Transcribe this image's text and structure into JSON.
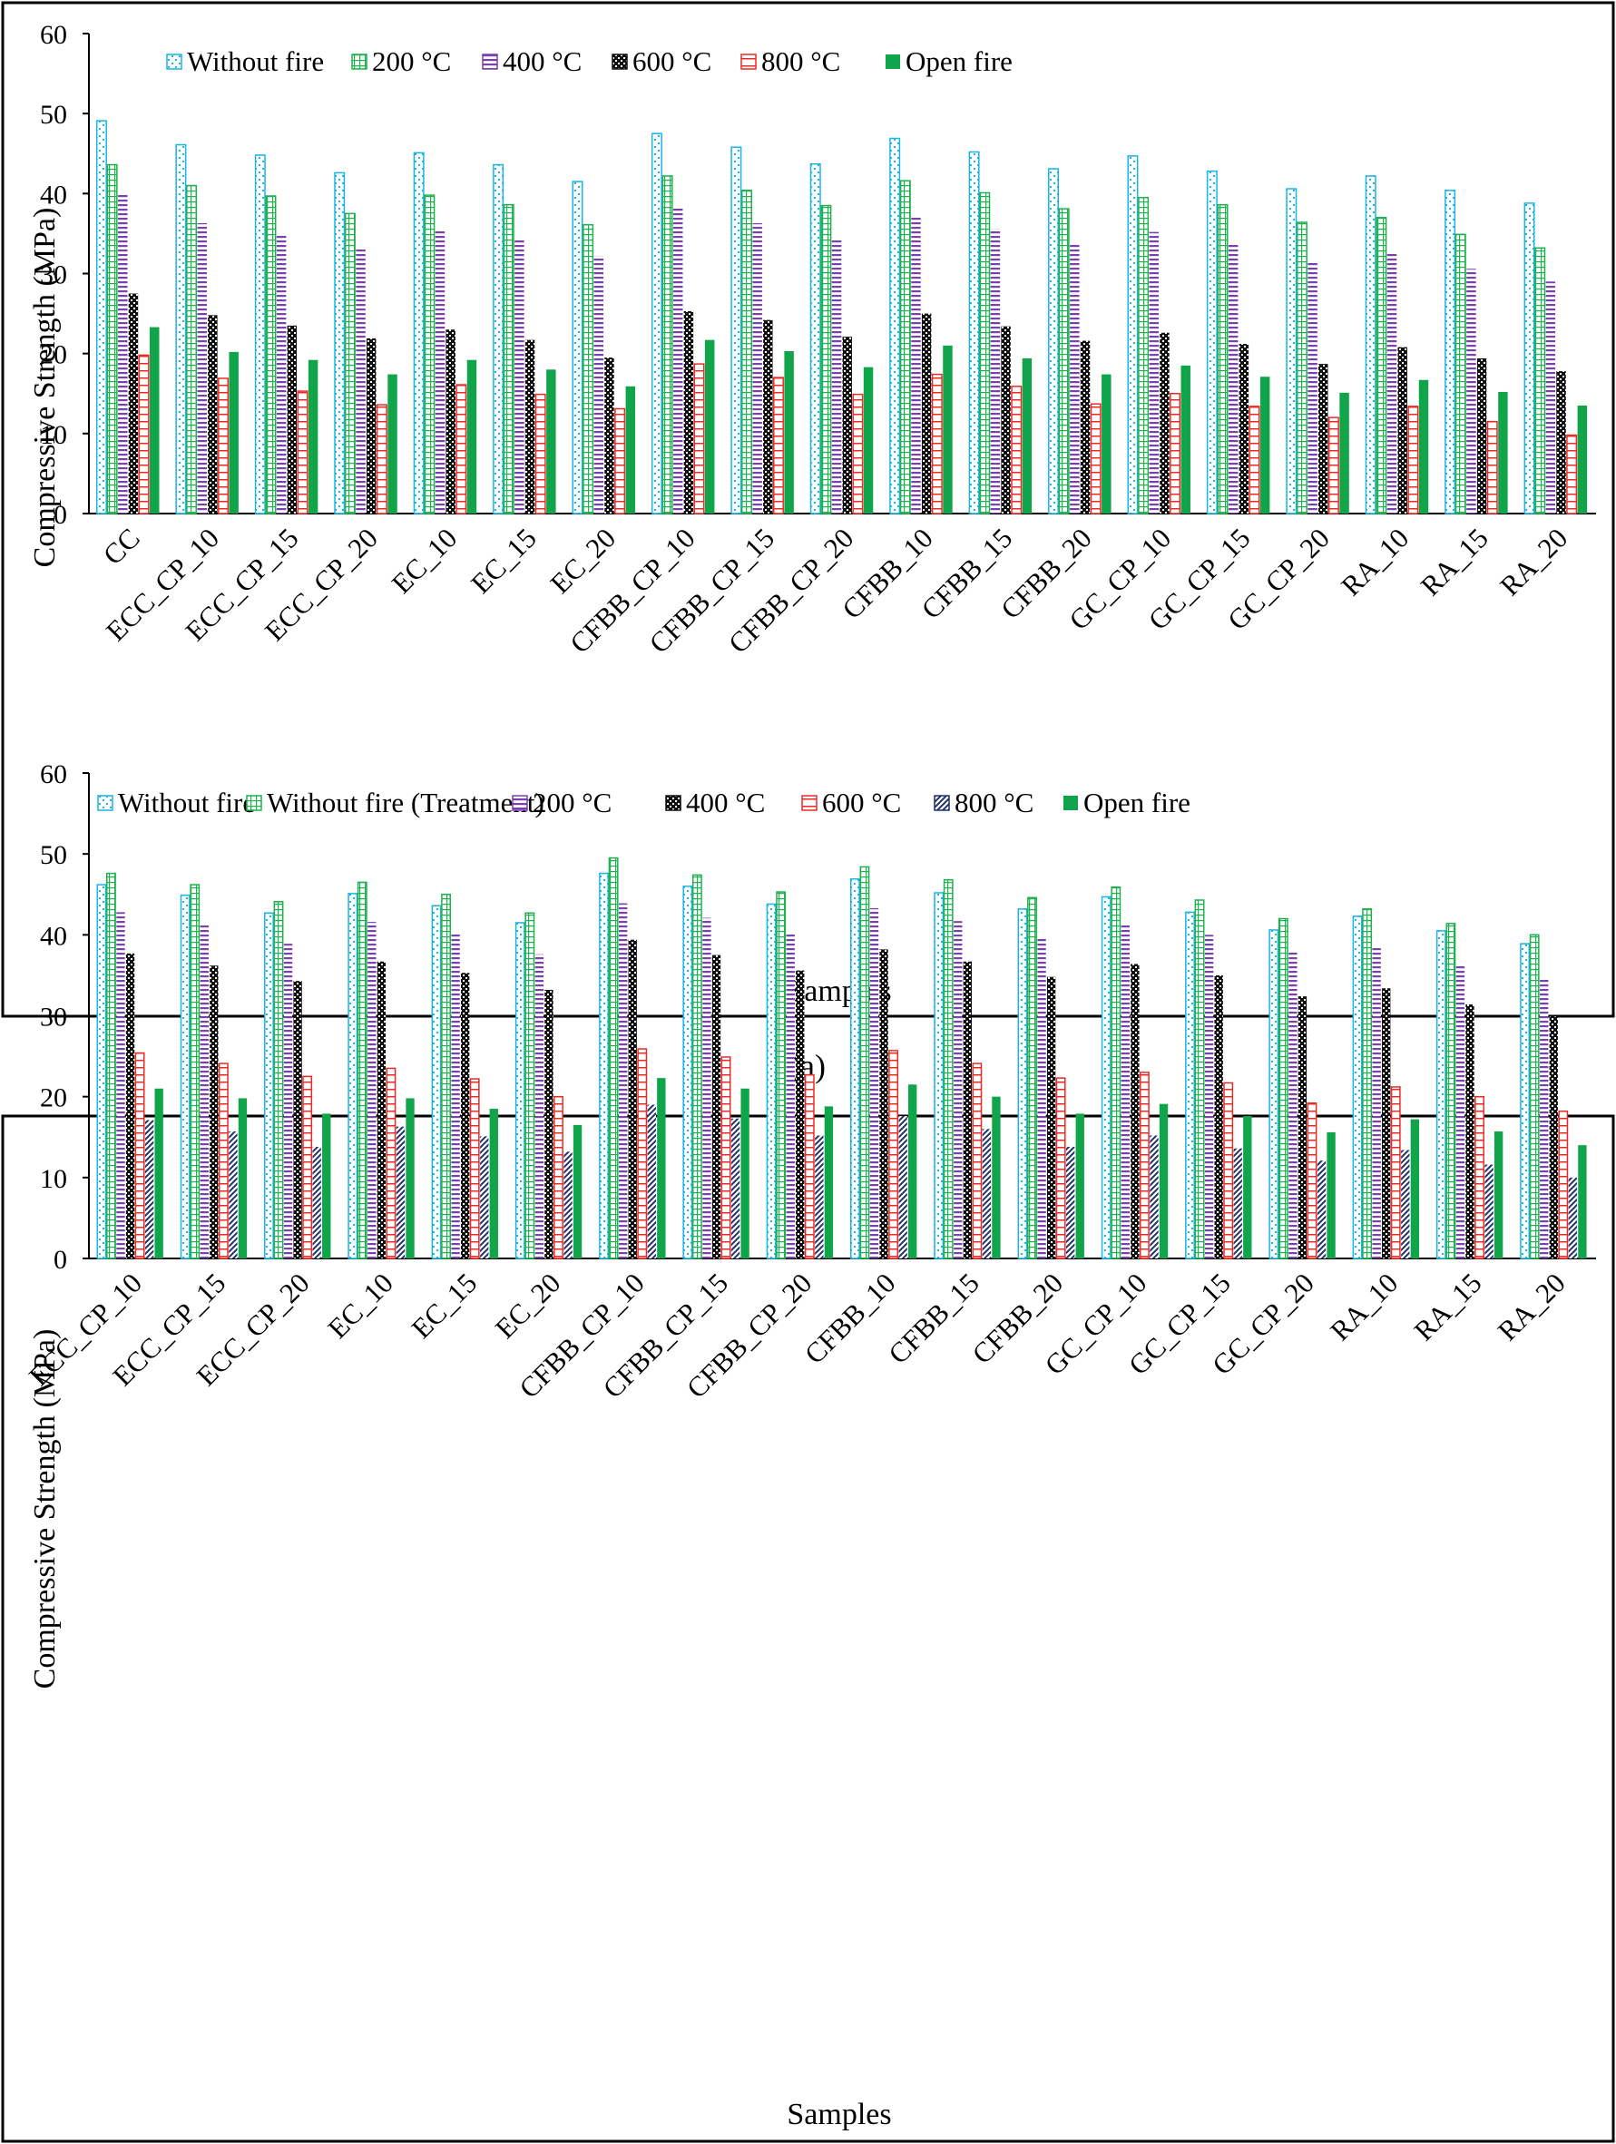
{
  "figure_label_a": "(a)",
  "colors": {
    "cyan": "#1ab4e6",
    "green": "#1db24d",
    "purple": "#7b3fb0",
    "black": "#111111",
    "red": "#ee2a24",
    "navy": "#1f2f6b",
    "solid_green": "#10a54a"
  },
  "chart_data": [
    {
      "type": "bar",
      "xlabel": "Samples",
      "ylabel": "Compressive Strength (MPa)",
      "ylim": [
        0,
        60
      ],
      "yticks": [
        0,
        10,
        20,
        30,
        40,
        50,
        60
      ],
      "grid": false,
      "legend_position": "top",
      "categories": [
        "CC",
        "ECC_CP_10",
        "ECC_CP_15",
        "ECC_CP_20",
        "EC_10",
        "EC_15",
        "EC_20",
        "CFBB_CP_10",
        "CFBB_CP_15",
        "CFBB_CP_20",
        "CFBB_10",
        "CFBB_15",
        "CFBB_20",
        "GC_CP_10",
        "GC_CP_15",
        "GC_CP_20",
        "RA_10",
        "RA_15",
        "RA_20"
      ],
      "series": [
        {
          "name": "Without fire",
          "color": "#1ab4e6",
          "pattern": "dots-light",
          "values": [
            49.1,
            46.1,
            44.8,
            42.6,
            45.1,
            43.6,
            41.5,
            47.5,
            45.8,
            43.7,
            46.9,
            45.2,
            43.1,
            44.7,
            42.8,
            40.6,
            42.2,
            40.4,
            38.8
          ]
        },
        {
          "name": "200 °C",
          "color": "#1db24d",
          "pattern": "grid-light",
          "values": [
            43.6,
            41.0,
            39.7,
            37.5,
            39.8,
            38.6,
            36.1,
            42.2,
            40.4,
            38.5,
            41.6,
            40.1,
            38.1,
            39.5,
            38.6,
            36.4,
            37.0,
            34.9,
            33.2
          ]
        },
        {
          "name": "400 °C",
          "color": "#7b3fb0",
          "pattern": "hlines",
          "values": [
            39.9,
            36.3,
            35.0,
            33.3,
            35.5,
            34.3,
            32.2,
            38.2,
            36.3,
            34.3,
            37.2,
            35.6,
            33.6,
            35.2,
            33.7,
            31.4,
            32.6,
            30.6,
            29.0
          ]
        },
        {
          "name": "600 °C",
          "color": "#111111",
          "pattern": "checker",
          "values": [
            27.5,
            24.8,
            23.5,
            21.9,
            23.0,
            21.7,
            19.5,
            25.3,
            24.2,
            22.1,
            25.0,
            23.4,
            21.6,
            22.6,
            21.2,
            18.7,
            20.8,
            19.4,
            17.8
          ]
        },
        {
          "name": "800 °C",
          "color": "#ee2a24",
          "pattern": "hollow",
          "values": [
            19.8,
            16.9,
            15.3,
            13.6,
            16.1,
            14.9,
            13.1,
            18.7,
            17.0,
            14.9,
            17.4,
            15.9,
            13.7,
            15.0,
            13.4,
            12.0,
            13.4,
            11.5,
            9.8
          ]
        },
        {
          "name": "Open fire",
          "color": "#10a54a",
          "pattern": "solid",
          "values": [
            23.3,
            20.2,
            19.2,
            17.4,
            19.2,
            18.0,
            15.9,
            21.7,
            20.3,
            18.3,
            21.0,
            19.4,
            17.4,
            18.5,
            17.1,
            15.1,
            16.7,
            15.2,
            13.5
          ]
        }
      ]
    },
    {
      "type": "bar",
      "xlabel": "Samples",
      "ylabel": "Compressive Strength (MPa)",
      "ylim": [
        0,
        60
      ],
      "yticks": [
        0,
        10,
        20,
        30,
        40,
        50,
        60
      ],
      "grid": false,
      "legend_position": "top",
      "categories": [
        "ECC_CP_10",
        "ECC_CP_15",
        "ECC_CP_20",
        "EC_10",
        "EC_15",
        "EC_20",
        "CFBB_CP_10",
        "CFBB_CP_15",
        "CFBB_CP_20",
        "CFBB_10",
        "CFBB_15",
        "CFBB_20",
        "GC_CP_10",
        "GC_CP_15",
        "GC_CP_20",
        "RA_10",
        "RA_15",
        "RA_20"
      ],
      "series": [
        {
          "name": "Without fire",
          "color": "#1ab4e6",
          "pattern": "dots-light",
          "values": [
            46.2,
            44.9,
            42.7,
            45.1,
            43.6,
            41.5,
            47.6,
            46.0,
            43.8,
            46.9,
            45.2,
            43.2,
            44.7,
            42.8,
            40.6,
            42.3,
            40.5,
            38.9
          ]
        },
        {
          "name": "Without fire (Treatment)",
          "color": "#1db24d",
          "pattern": "grid-light",
          "values": [
            47.6,
            46.2,
            44.1,
            46.5,
            45.0,
            42.7,
            49.5,
            47.4,
            45.3,
            48.4,
            46.8,
            44.6,
            45.9,
            44.3,
            42.0,
            43.2,
            41.4,
            40.0
          ]
        },
        {
          "name": "200 °C",
          "color": "#7b3fb0",
          "pattern": "hlines",
          "values": [
            42.8,
            41.3,
            38.9,
            41.6,
            40.2,
            37.6,
            43.9,
            42.1,
            40.2,
            43.3,
            41.7,
            39.7,
            41.2,
            40.0,
            37.9,
            38.4,
            36.2,
            34.5
          ]
        },
        {
          "name": "400 °C",
          "color": "#111111",
          "pattern": "checker",
          "values": [
            37.7,
            36.2,
            34.3,
            36.7,
            35.3,
            33.2,
            39.4,
            37.5,
            35.6,
            38.2,
            36.7,
            34.8,
            36.4,
            35.0,
            32.4,
            33.4,
            31.4,
            29.9
          ]
        },
        {
          "name": "600 °C",
          "color": "#ee2a24",
          "pattern": "hollow",
          "values": [
            25.4,
            24.1,
            22.5,
            23.5,
            22.2,
            20.0,
            25.9,
            24.9,
            22.7,
            25.7,
            24.1,
            22.3,
            23.0,
            21.7,
            19.2,
            21.2,
            20.0,
            18.2
          ]
        },
        {
          "name": "800 °C",
          "color": "#1f2f6b",
          "pattern": "diag",
          "values": [
            17.1,
            15.7,
            13.8,
            16.3,
            15.1,
            13.2,
            19.0,
            17.3,
            15.2,
            17.6,
            16.0,
            13.8,
            15.2,
            13.6,
            12.1,
            13.4,
            11.6,
            10.0
          ]
        },
        {
          "name": "Open fire",
          "color": "#10a54a",
          "pattern": "solid",
          "values": [
            21.0,
            19.8,
            17.9,
            19.8,
            18.5,
            16.5,
            22.3,
            21.0,
            18.8,
            21.5,
            20.0,
            17.9,
            19.1,
            17.6,
            15.6,
            17.2,
            15.7,
            14.0
          ]
        }
      ]
    }
  ]
}
